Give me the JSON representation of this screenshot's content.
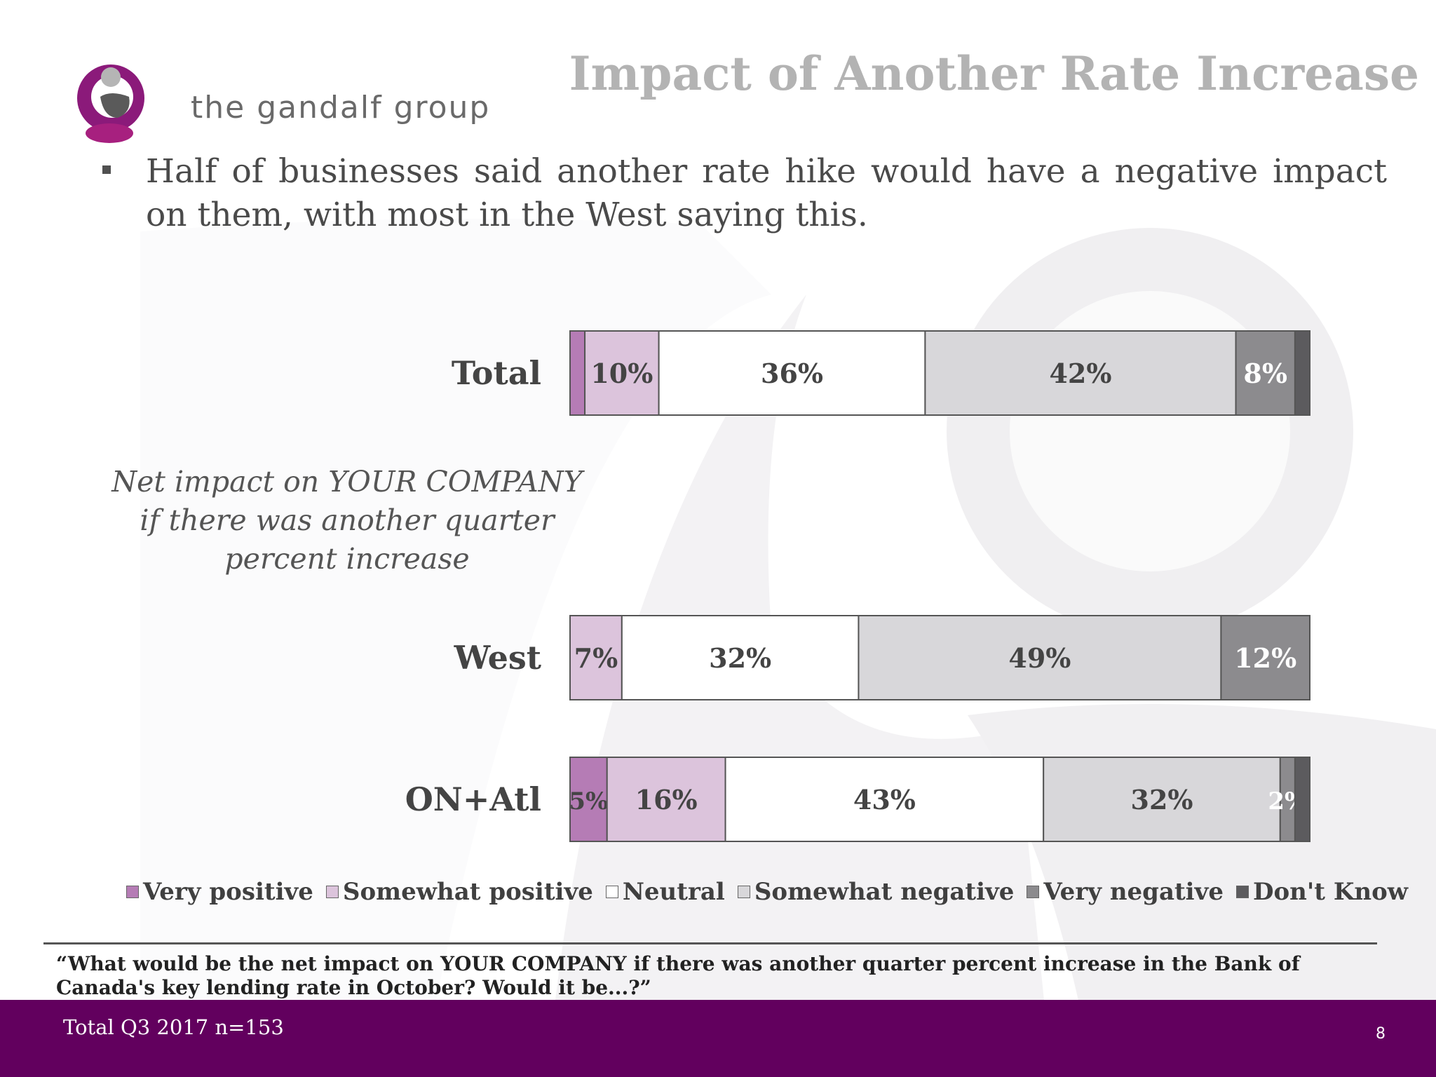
{
  "brand": {
    "name": "the gandalf group",
    "accent": "#62005e",
    "logo_colors": [
      "#8b1a7a",
      "#b0b0b0",
      "#5a5a5a"
    ]
  },
  "title": "Impact of Another Rate Increase",
  "bullet": "Half of businesses said another rate hike would have a negative impact on them, with most in the West saying this.",
  "chart_subtitle_lines": [
    "Net impact on YOUR COMPANY",
    "if there was another quarter",
    "percent increase"
  ],
  "chart_data": {
    "type": "bar",
    "orientation": "horizontal",
    "stacked": true,
    "categories": [
      "Total",
      "West",
      "ON+Atl"
    ],
    "series": [
      {
        "name": "Very positive",
        "color": "#b57cb5",
        "values": [
          2,
          0,
          5
        ],
        "labels": [
          "",
          "",
          "5%"
        ]
      },
      {
        "name": "Somewhat positive",
        "color": "#dcc4dc",
        "values": [
          10,
          7,
          16
        ],
        "labels": [
          "10%",
          "7%",
          "16%"
        ]
      },
      {
        "name": "Neutral",
        "color": "#ffffff",
        "values": [
          36,
          32,
          43
        ],
        "labels": [
          "36%",
          "32%",
          "43%"
        ]
      },
      {
        "name": "Somewhat negative",
        "color": "#d8d7da",
        "values": [
          42,
          49,
          32
        ],
        "labels": [
          "42%",
          "49%",
          "32%"
        ]
      },
      {
        "name": "Very negative",
        "color": "#8c8b8e",
        "values": [
          8,
          12,
          2
        ],
        "labels": [
          "8%",
          "12%",
          "2%"
        ]
      },
      {
        "name": "Don't Know",
        "color": "#5c5b5e",
        "values": [
          2,
          0,
          2
        ],
        "labels": [
          "",
          "",
          ""
        ]
      }
    ],
    "legend_position": "bottom",
    "grid": false
  },
  "question": "“What would be the net impact on YOUR COMPANY if there was another quarter percent increase in the Bank of Canada's key lending rate in October? Would it be...?”",
  "footer": {
    "note": "Total Q3 2017 n=153",
    "page_number": "8"
  }
}
